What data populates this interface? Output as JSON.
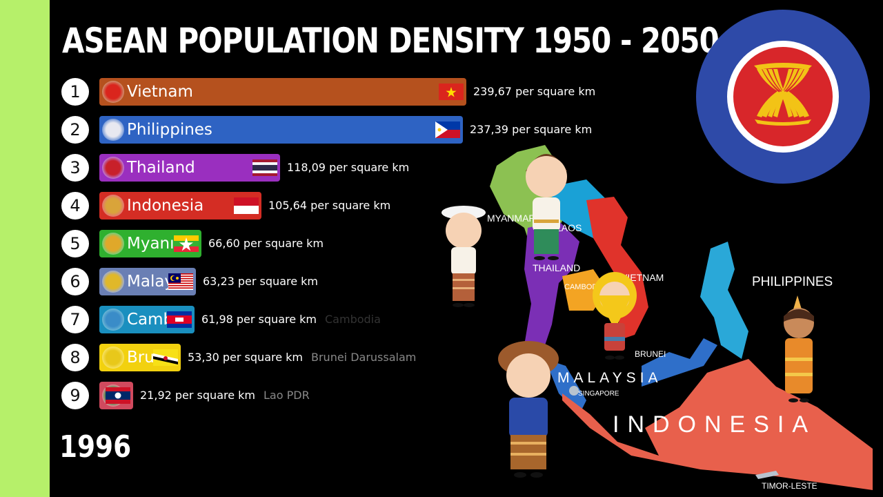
{
  "chart_data": {
    "type": "bar",
    "title": "ASEAN POPULATION DENSITY 1950 - 2050",
    "year": "1996",
    "unit_suffix": "per square km",
    "xlim": [
      0,
      245
    ],
    "series": [
      {
        "rank": "1",
        "name": "Vietnam",
        "bar_label": "Vietnam",
        "full_name": "",
        "value": 239.67,
        "value_label": "239,67 per square km",
        "color": "#b5511e",
        "flag": "vietnam"
      },
      {
        "rank": "2",
        "name": "Philippines",
        "bar_label": "Philippines",
        "full_name": "",
        "value": 237.39,
        "value_label": "237,39 per square km",
        "color": "#2e63c3",
        "flag": "philippines"
      },
      {
        "rank": "3",
        "name": "Thailand",
        "bar_label": "Thailand",
        "full_name": "",
        "value": 118.09,
        "value_label": "118,09 per square km",
        "color": "#9a2fbf",
        "flag": "thailand"
      },
      {
        "rank": "4",
        "name": "Indonesia",
        "bar_label": "Indonesia",
        "full_name": "",
        "value": 105.64,
        "value_label": "105,64 per square km",
        "color": "#d42d24",
        "flag": "indonesia"
      },
      {
        "rank": "5",
        "name": "Myanmar",
        "bar_label": "Myanı",
        "full_name": "",
        "value": 66.6,
        "value_label": "66,60 per square km",
        "color": "#2fb02f",
        "flag": "myanmar"
      },
      {
        "rank": "6",
        "name": "Malaysia",
        "bar_label": "Malay",
        "full_name": "",
        "value": 63.23,
        "value_label": "63,23 per square km",
        "color": "#6a7fb4",
        "flag": "malaysia"
      },
      {
        "rank": "7",
        "name": "Cambodia",
        "bar_label": "Camb",
        "full_name": "Cambodia",
        "value": 61.98,
        "value_label": "61,98 per square km",
        "color": "#1a8fbf",
        "flag": "cambodia"
      },
      {
        "rank": "8",
        "name": "Brunei Darussalam",
        "bar_label": "Bru",
        "full_name": "Brunei Darussalam",
        "value": 53.3,
        "value_label": "53,30 per square km",
        "color": "#f2d10f",
        "flag": "brunei"
      },
      {
        "rank": "9",
        "name": "Lao PDR",
        "bar_label": "",
        "full_name": "Lao PDR",
        "value": 21.92,
        "value_label": "21,92 per square km",
        "color": "#d04a5e",
        "flag": "laos"
      }
    ]
  },
  "map": {
    "labels": {
      "myanmar": "MYANMAR",
      "laos": "LAOS",
      "thailand": "THAILAND",
      "cambodia": "CAMBODIA",
      "vietnam": "VIETNAM",
      "philippines": "PHILIPPINES",
      "brunei": "BRUNEI",
      "malaysia": "MALAYSIA",
      "singapore": "SINGAPORE",
      "indonesia": "INDONESIA",
      "timor_leste": "TIMOR-LESTE"
    }
  },
  "colors": {
    "left_strip": "#b6f06a",
    "asean_outer": "#2e4aa8",
    "asean_ring": "#ffffff",
    "asean_center": "#d8262a",
    "asean_rice": "#f2c316"
  }
}
